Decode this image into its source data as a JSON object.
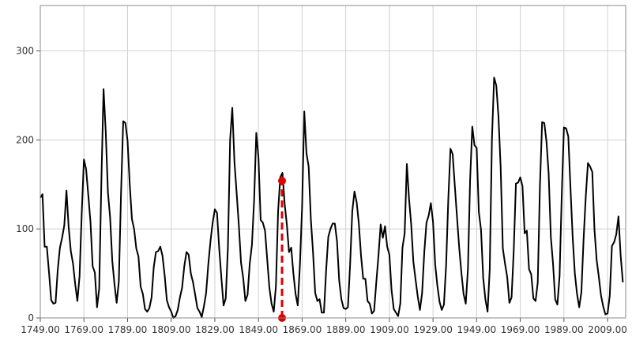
{
  "chart_data": {
    "type": "line",
    "x": [
      1749,
      1750,
      1751,
      1752,
      1753,
      1754,
      1755,
      1756,
      1757,
      1758,
      1759,
      1760,
      1761,
      1762,
      1763,
      1764,
      1765,
      1766,
      1767,
      1768,
      1769,
      1770,
      1771,
      1772,
      1773,
      1774,
      1775,
      1776,
      1777,
      1778,
      1779,
      1780,
      1781,
      1782,
      1783,
      1784,
      1785,
      1786,
      1787,
      1788,
      1789,
      1790,
      1791,
      1792,
      1793,
      1794,
      1795,
      1796,
      1797,
      1798,
      1799,
      1800,
      1801,
      1802,
      1803,
      1804,
      1805,
      1806,
      1807,
      1808,
      1809,
      1810,
      1811,
      1812,
      1813,
      1814,
      1815,
      1816,
      1817,
      1818,
      1819,
      1820,
      1821,
      1822,
      1823,
      1824,
      1825,
      1826,
      1827,
      1828,
      1829,
      1830,
      1831,
      1832,
      1833,
      1834,
      1835,
      1836,
      1837,
      1838,
      1839,
      1840,
      1841,
      1842,
      1843,
      1844,
      1845,
      1846,
      1847,
      1848,
      1849,
      1850,
      1851,
      1852,
      1853,
      1854,
      1855,
      1856,
      1857,
      1858,
      1859,
      1860,
      1861,
      1862,
      1863,
      1864,
      1865,
      1866,
      1867,
      1868,
      1869,
      1870,
      1871,
      1872,
      1873,
      1874,
      1875,
      1876,
      1877,
      1878,
      1879,
      1880,
      1881,
      1882,
      1883,
      1884,
      1885,
      1886,
      1887,
      1888,
      1889,
      1890,
      1891,
      1892,
      1893,
      1894,
      1895,
      1896,
      1897,
      1898,
      1899,
      1900,
      1901,
      1902,
      1903,
      1904,
      1905,
      1906,
      1907,
      1908,
      1909,
      1910,
      1911,
      1912,
      1913,
      1914,
      1915,
      1916,
      1917,
      1918,
      1919,
      1920,
      1921,
      1922,
      1923,
      1924,
      1925,
      1926,
      1927,
      1928,
      1929,
      1930,
      1931,
      1932,
      1933,
      1934,
      1935,
      1936,
      1937,
      1938,
      1939,
      1940,
      1941,
      1942,
      1943,
      1944,
      1945,
      1946,
      1947,
      1948,
      1949,
      1950,
      1951,
      1952,
      1953,
      1954,
      1955,
      1956,
      1957,
      1958,
      1959,
      1960,
      1961,
      1962,
      1963,
      1964,
      1965,
      1966,
      1967,
      1968,
      1969,
      1970,
      1971,
      1972,
      1973,
      1974,
      1975,
      1976,
      1977,
      1978,
      1979,
      1980,
      1981,
      1982,
      1983,
      1984,
      1985,
      1986,
      1987,
      1988,
      1989,
      1990,
      1991,
      1992,
      1993,
      1994,
      1995,
      1996,
      1997,
      1998,
      1999,
      2000,
      2001,
      2002,
      2003,
      2004,
      2005,
      2006,
      2007,
      2008,
      2009,
      2010,
      2011,
      2012,
      2013,
      2014,
      2015,
      2016
    ],
    "series": [
      {
        "color": "#000000",
        "values": [
          135,
          139,
          80,
          80,
          51,
          20,
          16,
          17,
          54,
          79,
          90,
          104,
          143,
          102,
          75,
          61,
          38,
          19,
          47,
          118,
          178,
          167,
          138,
          108,
          58,
          51,
          12,
          33,
          154,
          257,
          209,
          141,
          113,
          64,
          38,
          17,
          41,
          139,
          221,
          219,
          199,
          150,
          111,
          100,
          78,
          69,
          35,
          27,
          10,
          7,
          11,
          23,
          57,
          74,
          75,
          80,
          70,
          48,
          20,
          12,
          7,
          0,
          2,
          9,
          23,
          34,
          58,
          74,
          71,
          50,
          40,
          26,
          11,
          7,
          1,
          13,
          28,
          60,
          86,
          107,
          122,
          118,
          78,
          45,
          14,
          22,
          80,
          200,
          236,
          175,
          140,
          104,
          62,
          45,
          19,
          26,
          61,
          82,
          132,
          208,
          180,
          110,
          107,
          98,
          66,
          34,
          16,
          7,
          36,
          120,
          158,
          163,
          128,
          105,
          74,
          79,
          50,
          27,
          14,
          60,
          125,
          232,
          185,
          170,
          111,
          74,
          28,
          19,
          21,
          6,
          6,
          53,
          91,
          100,
          106,
          106,
          86,
          42,
          21,
          11,
          10,
          12,
          60,
          120,
          142,
          130,
          106,
          70,
          44,
          44,
          19,
          16,
          5,
          8,
          40,
          70,
          105,
          90,
          103,
          80,
          71,
          31,
          10,
          6,
          2,
          16,
          79,
          95,
          173,
          134,
          105,
          63,
          43,
          24,
          9,
          28,
          74,
          107,
          115,
          129,
          108,
          60,
          36,
          18,
          9,
          15,
          59,
          133,
          190,
          184,
          148,
          113,
          79,
          51,
          27,
          16,
          55,
          155,
          215,
          194,
          191,
          119,
          99,
          45,
          21,
          7,
          55,
          201,
          270,
          261,
          226,
          169,
          78,
          61,
          46,
          17,
          23,
          76,
          151,
          152,
          158,
          148,
          95,
          98,
          55,
          49,
          22,
          19,
          40,
          148,
          220,
          219,
          198,
          162,
          91,
          61,
          21,
          15,
          47,
          138,
          214,
          213,
          204,
          146,
          91,
          50,
          27,
          12,
          29,
          88,
          136,
          174,
          170,
          164,
          99,
          65,
          46,
          25,
          13,
          4,
          5,
          25,
          81,
          85,
          94,
          114,
          70,
          40
        ]
      }
    ],
    "xlim": [
      1749,
      2017.3
    ],
    "ylim": [
      0,
      351
    ],
    "xticks": [
      {
        "value": 1749,
        "label": "1749.00"
      },
      {
        "value": 1769,
        "label": "1769.00"
      },
      {
        "value": 1789,
        "label": "1789.00"
      },
      {
        "value": 1809,
        "label": "1809.00"
      },
      {
        "value": 1829,
        "label": "1829.00"
      },
      {
        "value": 1849,
        "label": "1849.00"
      },
      {
        "value": 1869,
        "label": "1869.00"
      },
      {
        "value": 1889,
        "label": "1889.00"
      },
      {
        "value": 1909,
        "label": "1909.00"
      },
      {
        "value": 1929,
        "label": "1929.00"
      },
      {
        "value": 1949,
        "label": "1949.00"
      },
      {
        "value": 1969,
        "label": "1969.00"
      },
      {
        "value": 1989,
        "label": "1989.00"
      },
      {
        "value": 2009,
        "label": "2009.00"
      }
    ],
    "yticks": [
      0,
      100,
      200,
      300
    ],
    "grid": true,
    "highlight": {
      "x": 1859.8,
      "y": [
        0,
        154
      ],
      "color": "#e00000"
    }
  }
}
